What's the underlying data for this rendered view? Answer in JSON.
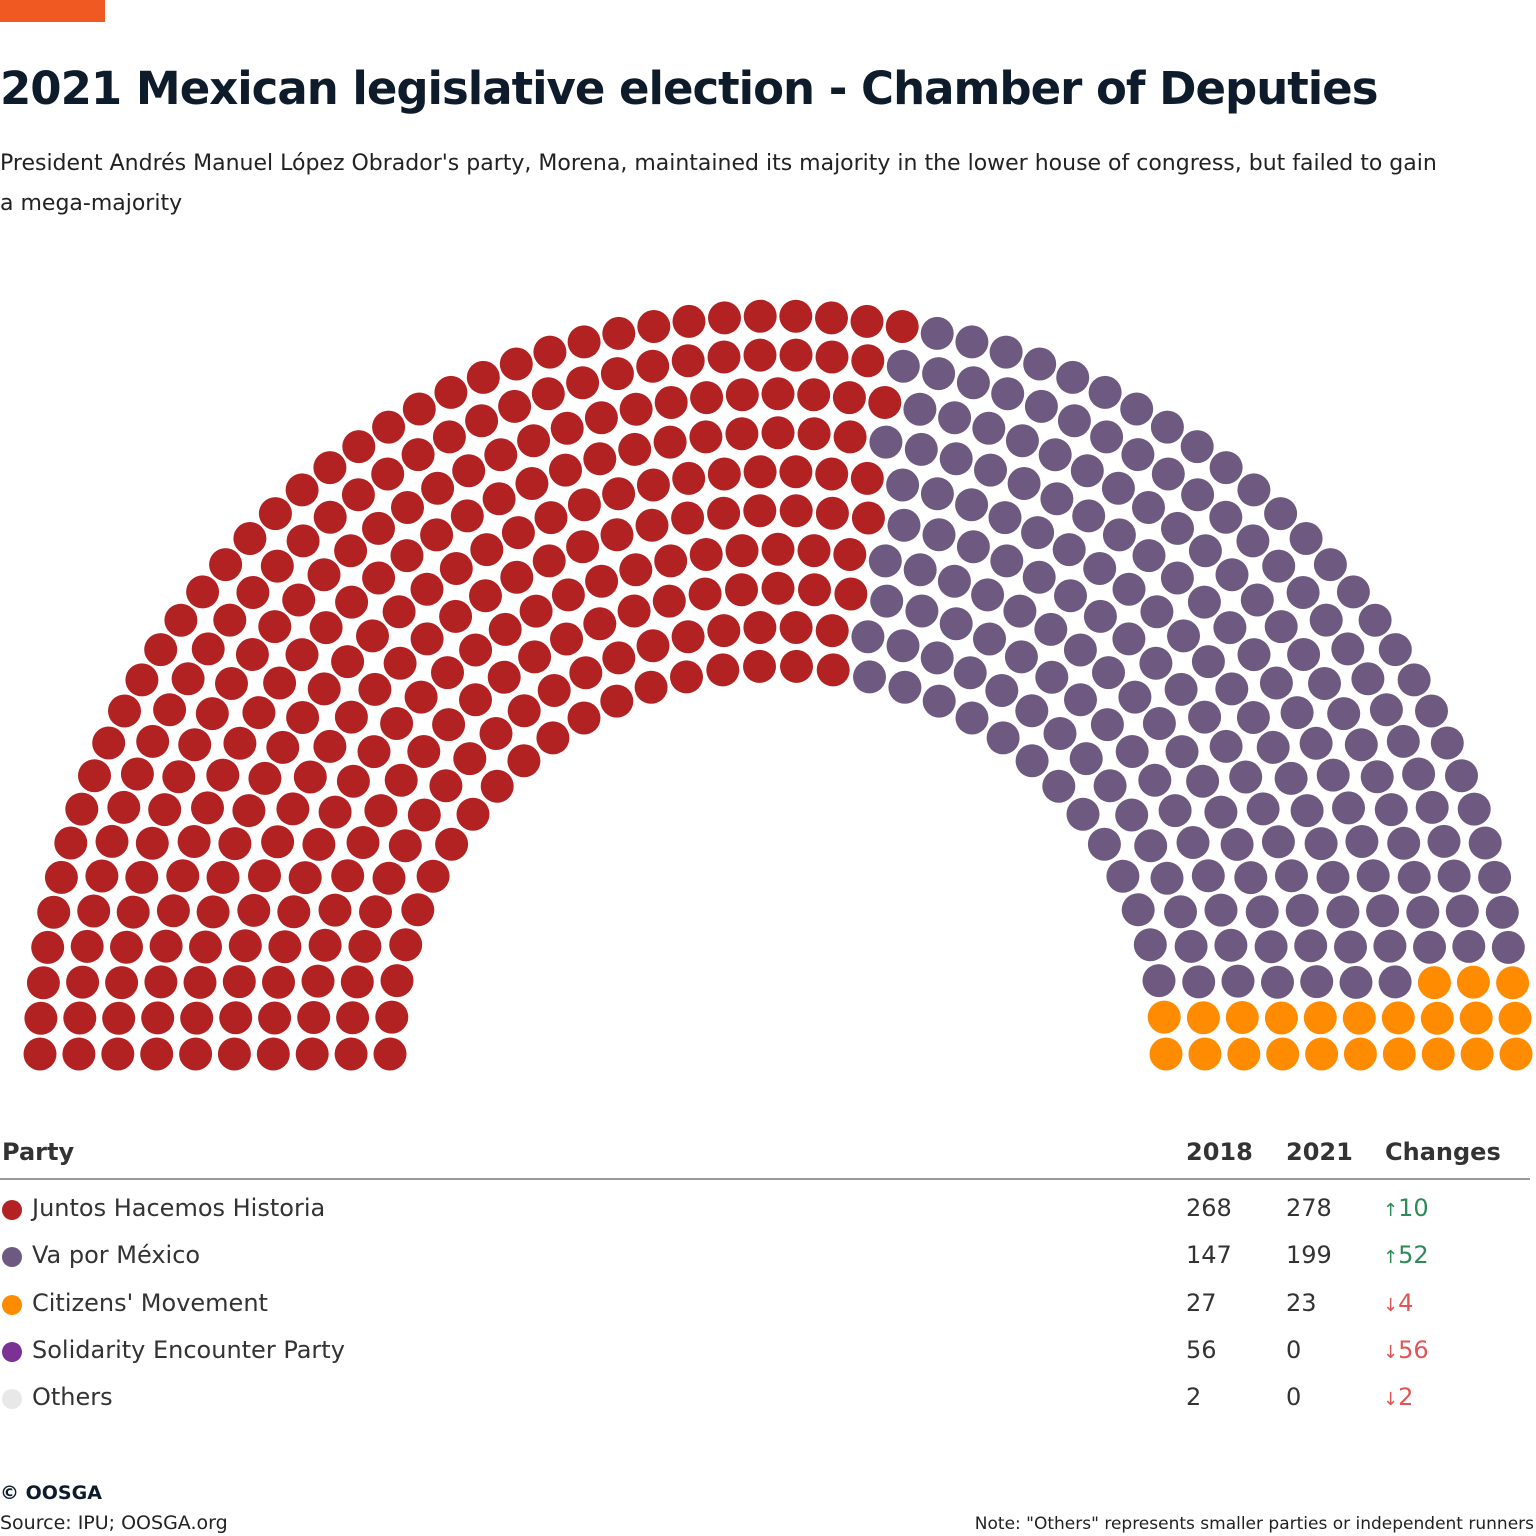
{
  "header": {
    "title": "2021 Mexican legislative election - Chamber of Deputies",
    "subtitle": " President Andrés Manuel López Obrador's party, Morena, maintained its majority in the lower house of congress, but failed to gain a mega-majority",
    "accent_color": "#f05a22"
  },
  "chart_data": {
    "type": "parliament",
    "total_seats": 500,
    "rows": 10,
    "series": [
      {
        "name": "Juntos Hacemos Historia",
        "seats": 278,
        "color": "#b22222"
      },
      {
        "name": "Va por México",
        "seats": 199,
        "color": "#6e5a80"
      },
      {
        "name": "Citizens' Movement",
        "seats": 23,
        "color": "#ff8c00"
      }
    ]
  },
  "table": {
    "headers": {
      "party": "Party",
      "y2018": "2018",
      "y2021": "2021",
      "changes": "Changes"
    },
    "rows": [
      {
        "party": "Juntos Hacemos Historia",
        "color": "#b22222",
        "y2018": "268",
        "y2021": "278",
        "change": "10",
        "direction": "up"
      },
      {
        "party": "Va por México",
        "color": "#6e5a80",
        "y2018": "147",
        "y2021": "199",
        "change": "52",
        "direction": "up"
      },
      {
        "party": "Citizens' Movement",
        "color": "#ff8c00",
        "y2018": "27",
        "y2021": "23",
        "change": "4",
        "direction": "down"
      },
      {
        "party": "Solidarity Encounter Party",
        "color": "#7b3294",
        "y2018": "56",
        "y2021": "0",
        "change": "56",
        "direction": "down"
      },
      {
        "party": "Others",
        "color": "#e8e8e8",
        "y2018": "2",
        "y2021": "0",
        "change": "2",
        "direction": "down"
      }
    ],
    "up_color": "#2e8b57",
    "down_color": "#e05555"
  },
  "footer": {
    "copyright": "© OOSGA",
    "source": "Source: IPU; OOSGA.org",
    "note": "Note: \"Others\" represents smaller parties or independent runners"
  }
}
